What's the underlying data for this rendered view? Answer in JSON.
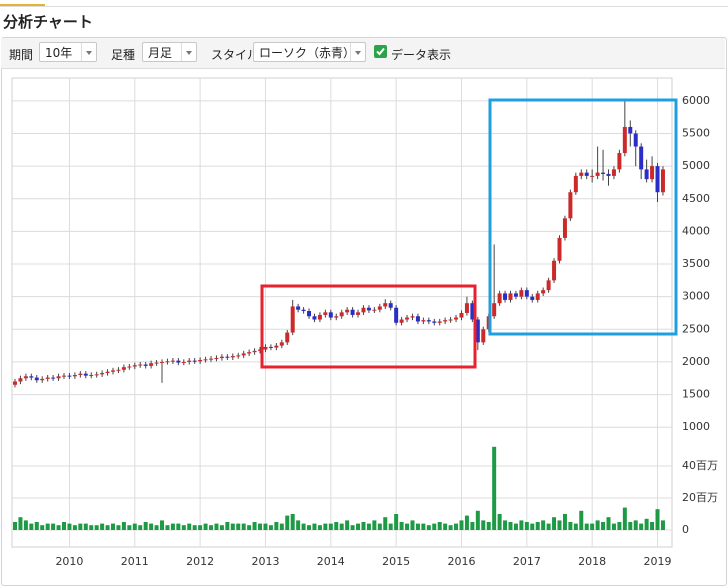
{
  "header": {
    "title": "分析チャート"
  },
  "controls": {
    "period_label": "期間",
    "period": "10年",
    "bar_label": "足種",
    "bar": "月足",
    "style_label": "スタイル",
    "style": "ローソク（赤青）",
    "data_display": "データ表示",
    "data_display_checked": true
  },
  "chart_data": [
    {
      "type": "candlestick",
      "categories": [
        null,
        null,
        null,
        null,
        null,
        null,
        null,
        null,
        null,
        null,
        "2010",
        null,
        null,
        null,
        null,
        null,
        null,
        null,
        null,
        null,
        null,
        null,
        "2011",
        null,
        null,
        null,
        null,
        null,
        null,
        null,
        null,
        null,
        null,
        null,
        "2012",
        null,
        null,
        null,
        null,
        null,
        null,
        null,
        null,
        null,
        null,
        null,
        "2013",
        null,
        null,
        null,
        null,
        null,
        null,
        null,
        null,
        null,
        null,
        null,
        "2014",
        null,
        null,
        null,
        null,
        null,
        null,
        null,
        null,
        null,
        null,
        null,
        "2015",
        null,
        null,
        null,
        null,
        null,
        null,
        null,
        null,
        null,
        null,
        null,
        "2016",
        null,
        null,
        null,
        null,
        null,
        null,
        null,
        null,
        null,
        null,
        null,
        "2017",
        null,
        null,
        null,
        null,
        null,
        null,
        null,
        null,
        null,
        null,
        null,
        "2018",
        null,
        null,
        null,
        null,
        null,
        null,
        null,
        null,
        null,
        null,
        null,
        "2019",
        null
      ],
      "open": [
        1650,
        1700,
        1750,
        1780,
        1760,
        1720,
        1740,
        1760,
        1750,
        1780,
        1790,
        1780,
        1800,
        1820,
        1790,
        1800,
        1810,
        1830,
        1850,
        1870,
        1880,
        1920,
        1930,
        1950,
        1960,
        1940,
        1980,
        1990,
        2000,
        2010,
        2020,
        1990,
        2000,
        2020,
        2010,
        2030,
        2040,
        2050,
        2060,
        2080,
        2070,
        2090,
        2100,
        2130,
        2150,
        2170,
        2190,
        2230,
        2220,
        2250,
        2300,
        2450,
        2850,
        2800,
        2780,
        2700,
        2650,
        2720,
        2760,
        2680,
        2700,
        2760,
        2800,
        2720,
        2760,
        2830,
        2790,
        2800,
        2850,
        2900,
        2830,
        2600,
        2650,
        2680,
        2700,
        2620,
        2640,
        2620,
        2600,
        2620,
        2640,
        2650,
        2680,
        2750,
        2900,
        2650,
        2300,
        2500,
        2700,
        2900,
        3050,
        2950,
        3050,
        3000,
        3100,
        3000,
        2950,
        3050,
        3100,
        3250,
        3550,
        3900,
        4200,
        4600,
        4850,
        4900,
        4850,
        4850,
        4900,
        4880,
        4850,
        4950,
        5200,
        5600,
        5500,
        5300,
        4950,
        4800,
        5000,
        4600
      ],
      "high": [
        1740,
        1790,
        1820,
        1820,
        1800,
        1780,
        1800,
        1800,
        1820,
        1830,
        1830,
        1840,
        1860,
        1860,
        1840,
        1850,
        1870,
        1890,
        1910,
        1920,
        1960,
        1970,
        1990,
        2000,
        2000,
        2020,
        2030,
        2040,
        2050,
        2060,
        2060,
        2040,
        2060,
        2060,
        2070,
        2080,
        2090,
        2100,
        2120,
        2120,
        2130,
        2140,
        2170,
        2190,
        2210,
        2230,
        2270,
        2270,
        2290,
        2340,
        2490,
        2950,
        2890,
        2840,
        2820,
        2740,
        2760,
        2800,
        2800,
        2740,
        2800,
        2840,
        2840,
        2800,
        2870,
        2870,
        2840,
        2890,
        2960,
        2940,
        2870,
        2690,
        2720,
        2740,
        2740,
        2680,
        2680,
        2660,
        2660,
        2680,
        2690,
        2720,
        2790,
        3000,
        2940,
        2690,
        2540,
        2740,
        3800,
        3090,
        3090,
        3090,
        3090,
        3140,
        3140,
        3040,
        3090,
        3140,
        3290,
        3590,
        3940,
        4240,
        4640,
        4900,
        4950,
        4950,
        4950,
        5300,
        5250,
        4950,
        5000,
        5250,
        6000,
        5700,
        5550,
        5350,
        5100,
        5150,
        5050,
        5000
      ],
      "low": [
        1610,
        1660,
        1710,
        1720,
        1680,
        1680,
        1700,
        1710,
        1710,
        1740,
        1740,
        1740,
        1760,
        1750,
        1750,
        1760,
        1770,
        1790,
        1810,
        1830,
        1840,
        1880,
        1890,
        1910,
        1900,
        1900,
        1940,
        1680,
        1960,
        1970,
        1950,
        1950,
        1960,
        1970,
        1970,
        1990,
        2000,
        2010,
        2020,
        2030,
        2030,
        2050,
        2060,
        2090,
        2110,
        2130,
        2150,
        2180,
        2180,
        2210,
        2260,
        2410,
        2760,
        2740,
        2660,
        2610,
        2610,
        2680,
        2640,
        2640,
        2660,
        2720,
        2680,
        2680,
        2720,
        2750,
        2750,
        2760,
        2810,
        2790,
        2560,
        2560,
        2610,
        2640,
        2580,
        2580,
        2580,
        2560,
        2560,
        2580,
        2600,
        2610,
        2640,
        2710,
        2610,
        2180,
        2260,
        2460,
        2660,
        2860,
        2910,
        2910,
        2960,
        2960,
        2960,
        2910,
        2910,
        3010,
        3060,
        3210,
        3510,
        3860,
        4160,
        4560,
        4800,
        4800,
        4750,
        4800,
        4780,
        4700,
        4800,
        4900,
        5150,
        5300,
        5000,
        4800,
        4750,
        4750,
        4450,
        4550
      ],
      "close": [
        1700,
        1750,
        1780,
        1760,
        1720,
        1740,
        1760,
        1750,
        1780,
        1790,
        1780,
        1800,
        1820,
        1790,
        1800,
        1810,
        1830,
        1850,
        1870,
        1880,
        1920,
        1930,
        1950,
        1960,
        1940,
        1980,
        1990,
        2000,
        2010,
        2020,
        1990,
        2000,
        2020,
        2010,
        2030,
        2040,
        2050,
        2060,
        2080,
        2070,
        2090,
        2100,
        2130,
        2150,
        2170,
        2190,
        2230,
        2220,
        2250,
        2300,
        2450,
        2850,
        2800,
        2780,
        2700,
        2650,
        2720,
        2760,
        2680,
        2700,
        2760,
        2800,
        2720,
        2760,
        2830,
        2790,
        2800,
        2850,
        2900,
        2830,
        2600,
        2650,
        2680,
        2700,
        2620,
        2640,
        2620,
        2600,
        2620,
        2640,
        2650,
        2680,
        2750,
        2900,
        2650,
        2300,
        2500,
        2700,
        2900,
        3050,
        2950,
        3050,
        3000,
        3100,
        3000,
        2950,
        3050,
        3100,
        3250,
        3550,
        3900,
        4200,
        4600,
        4850,
        4900,
        4850,
        4850,
        4900,
        4880,
        4850,
        4950,
        5200,
        5600,
        5500,
        5300,
        4950,
        4800,
        5000,
        4600,
        4950
      ],
      "up_color": "#cc2a2a",
      "down_color": "#2a2ec8",
      "wick_color": "#444444",
      "ylim": [
        850,
        6350
      ],
      "yticks": [
        1000,
        1500,
        2000,
        2500,
        3000,
        3500,
        4000,
        4500,
        5000,
        5500,
        6000
      ],
      "grid": true
    },
    {
      "type": "bar",
      "values": [
        5000000,
        8000000,
        6000000,
        4000000,
        5000000,
        3000000,
        4000000,
        4000000,
        3000000,
        5000000,
        4000000,
        3000000,
        4000000,
        4000000,
        3000000,
        3000000,
        4000000,
        3000000,
        4000000,
        3000000,
        5000000,
        3000000,
        4000000,
        3000000,
        5000000,
        4000000,
        3000000,
        6000000,
        3000000,
        4000000,
        4000000,
        3000000,
        4000000,
        3000000,
        3000000,
        4000000,
        3000000,
        4000000,
        3000000,
        5000000,
        4000000,
        4000000,
        4000000,
        3000000,
        5000000,
        4000000,
        4000000,
        3000000,
        5000000,
        4000000,
        9000000,
        10000000,
        6000000,
        4000000,
        3000000,
        4000000,
        3000000,
        4000000,
        4000000,
        5000000,
        4000000,
        6000000,
        3000000,
        4000000,
        5000000,
        4000000,
        6000000,
        4000000,
        8000000,
        4000000,
        10000000,
        5000000,
        4000000,
        6000000,
        4000000,
        4000000,
        3000000,
        4000000,
        5000000,
        4000000,
        3000000,
        4000000,
        6000000,
        9000000,
        5000000,
        12000000,
        6000000,
        5000000,
        52000000,
        10000000,
        6000000,
        5000000,
        4000000,
        6000000,
        5000000,
        4000000,
        5000000,
        6000000,
        4000000,
        8000000,
        6000000,
        10000000,
        5000000,
        4000000,
        12000000,
        4000000,
        4000000,
        6000000,
        5000000,
        8000000,
        4000000,
        5000000,
        14000000,
        5000000,
        6000000,
        4000000,
        7000000,
        5000000,
        13000000,
        6000000
      ],
      "color": "#1e9a45",
      "ylim": [
        -10000000,
        60000000
      ],
      "yticks": [
        0,
        {
          "value": 20000000,
          "label": "20百万"
        },
        {
          "value": 40000000,
          "label": "40百万"
        }
      ],
      "grid": true
    }
  ]
}
